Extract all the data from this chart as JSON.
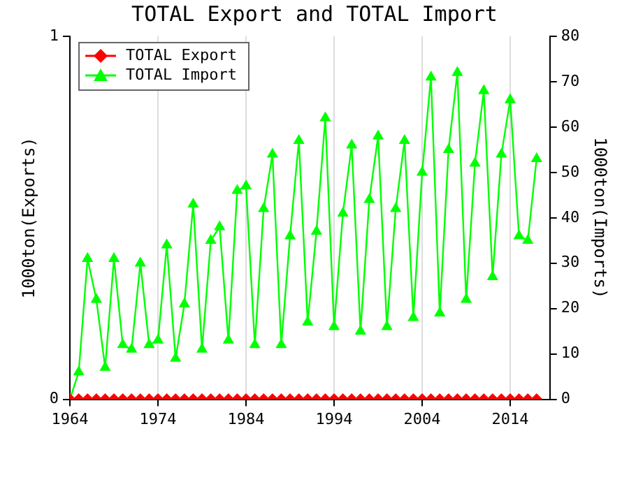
{
  "chart_data": {
    "type": "line",
    "title": "TOTAL Export and TOTAL Import",
    "ylabel": "1000ton(Exports)",
    "y2label": "1000ton(Imports)",
    "x": [
      1964,
      1965,
      1966,
      1967,
      1968,
      1969,
      1970,
      1971,
      1972,
      1973,
      1974,
      1975,
      1976,
      1977,
      1978,
      1979,
      1980,
      1981,
      1982,
      1983,
      1984,
      1985,
      1986,
      1987,
      1988,
      1989,
      1990,
      1991,
      1992,
      1993,
      1994,
      1995,
      1996,
      1997,
      1998,
      1999,
      2000,
      2001,
      2002,
      2003,
      2004,
      2005,
      2006,
      2007,
      2008,
      2009,
      2010,
      2011,
      2012,
      2013,
      2014,
      2015,
      2016,
      2017
    ],
    "series": [
      {
        "name": "TOTAL Export",
        "color": "#ff0000",
        "marker": "diamond",
        "values": [
          0,
          0,
          0,
          0,
          0,
          0,
          0,
          0,
          0,
          0,
          0,
          0,
          0,
          0,
          0,
          0,
          0,
          0,
          0,
          0,
          0,
          0,
          0,
          0,
          0,
          0,
          0,
          0,
          0,
          0,
          0,
          0,
          0,
          0,
          0,
          0,
          0,
          0,
          0,
          0,
          0,
          0,
          0,
          0,
          0,
          0,
          0,
          0,
          0,
          0,
          0,
          0,
          0,
          0
        ]
      },
      {
        "name": "TOTAL Import",
        "color": "#00ff00",
        "marker": "triangle",
        "axis": "y2",
        "values": [
          0,
          6,
          31,
          22,
          7,
          31,
          12,
          11,
          30,
          12,
          13,
          34,
          9,
          21,
          43,
          11,
          35,
          38,
          13,
          46,
          47,
          12,
          42,
          54,
          12,
          36,
          57,
          17,
          37,
          62,
          16,
          41,
          56,
          15,
          44,
          58,
          16,
          42,
          57,
          18,
          50,
          71,
          19,
          55,
          72,
          22,
          52,
          68,
          27,
          54,
          66,
          36,
          35,
          53
        ]
      }
    ],
    "xlim": [
      1964,
      2018.5
    ],
    "xticks": [
      1964,
      1974,
      1984,
      1994,
      2004,
      2014
    ],
    "ylim": [
      0,
      1
    ],
    "yticks": [
      0,
      1
    ],
    "y2lim": [
      0,
      80
    ],
    "y2ticks": [
      0,
      10,
      20,
      30,
      40,
      50,
      60,
      70,
      80
    ],
    "grid": "x",
    "legend": "top left"
  }
}
